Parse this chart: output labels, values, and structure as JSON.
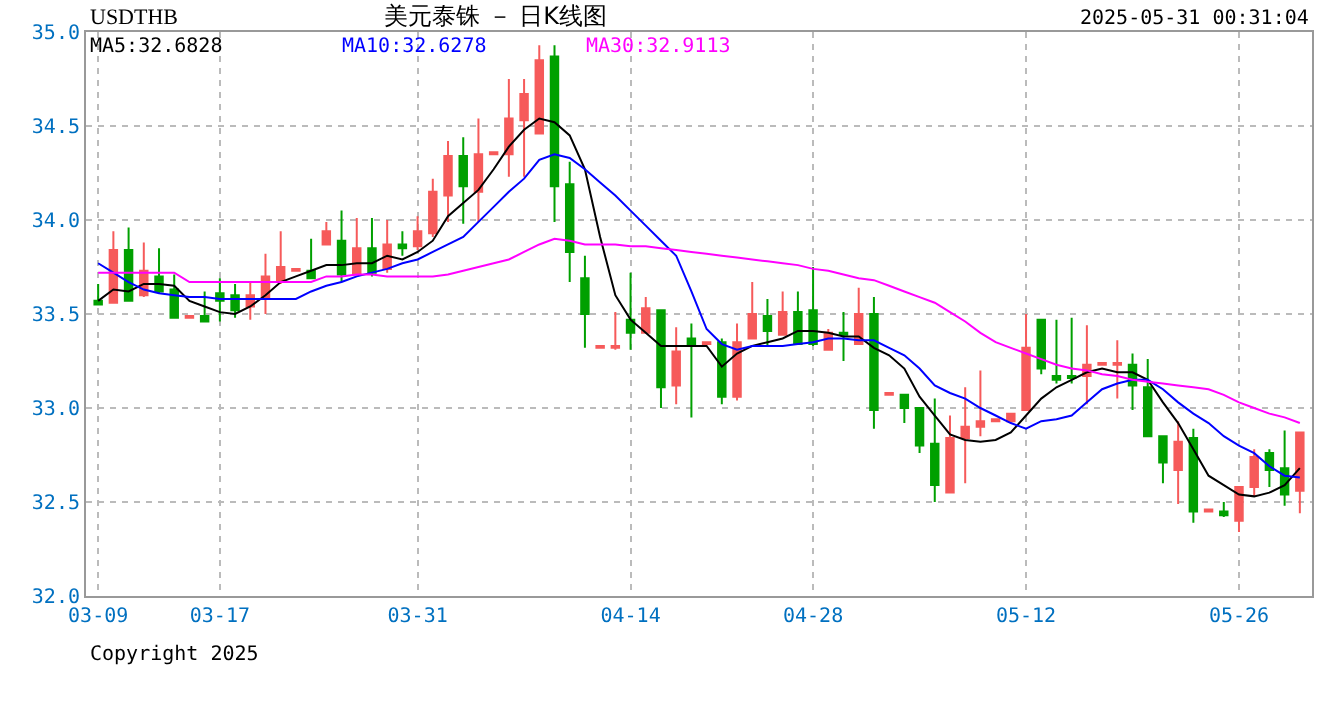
{
  "chart_data": {
    "type": "candlestick",
    "title": "美元泰铢 － 日K线图",
    "subtitle": "USDTHB",
    "annotations": [
      "2025-05-31 00:31:04",
      "Copyright 2025"
    ],
    "categories": [
      "03-09",
      null,
      null,
      null,
      null,
      null,
      null,
      null,
      "03-17",
      null,
      null,
      null,
      null,
      null,
      null,
      null,
      null,
      null,
      null,
      null,
      null,
      "03-31",
      null,
      null,
      null,
      null,
      null,
      null,
      null,
      null,
      null,
      null,
      null,
      null,
      null,
      "04-14",
      null,
      null,
      null,
      null,
      null,
      null,
      null,
      null,
      null,
      null,
      null,
      "04-28",
      null,
      null,
      null,
      null,
      null,
      null,
      null,
      null,
      null,
      null,
      null,
      null,
      null,
      "05-12",
      null,
      null,
      null,
      null,
      null,
      null,
      null,
      null,
      null,
      null,
      null,
      null,
      null,
      "05-26",
      null,
      null,
      null,
      null
    ],
    "ohlc": [
      [
        33.57,
        33.66,
        33.55,
        33.55
      ],
      [
        33.56,
        33.94,
        33.56,
        33.84
      ],
      [
        33.84,
        33.96,
        33.57,
        33.57
      ],
      [
        33.6,
        33.88,
        33.59,
        33.73
      ],
      [
        33.7,
        33.85,
        33.61,
        33.62
      ],
      [
        33.63,
        33.71,
        33.48,
        33.48
      ],
      [
        33.48,
        33.49,
        33.48,
        33.49
      ],
      [
        33.49,
        33.62,
        33.46,
        33.46
      ],
      [
        33.61,
        33.69,
        33.46,
        33.57
      ],
      [
        33.6,
        33.66,
        33.48,
        33.52
      ],
      [
        33.54,
        33.67,
        33.47,
        33.6
      ],
      [
        33.59,
        33.82,
        33.5,
        33.7
      ],
      [
        33.67,
        33.94,
        33.66,
        33.75
      ],
      [
        33.73,
        33.74,
        33.73,
        33.74
      ],
      [
        33.73,
        33.9,
        33.69,
        33.69
      ],
      [
        33.87,
        33.99,
        33.87,
        33.94
      ],
      [
        33.89,
        34.05,
        33.67,
        33.71
      ],
      [
        33.71,
        34.01,
        33.71,
        33.85
      ],
      [
        33.85,
        34.01,
        33.7,
        33.72
      ],
      [
        33.74,
        34.0,
        33.72,
        33.87
      ],
      [
        33.87,
        33.94,
        33.81,
        33.85
      ],
      [
        33.86,
        34.02,
        33.84,
        33.94
      ],
      [
        33.93,
        34.22,
        33.91,
        34.15
      ],
      [
        34.13,
        34.42,
        33.99,
        34.34
      ],
      [
        34.34,
        34.44,
        33.98,
        34.18
      ],
      [
        34.15,
        34.54,
        33.99,
        34.35
      ],
      [
        34.35,
        34.36,
        34.35,
        34.36
      ],
      [
        34.35,
        34.75,
        34.23,
        34.54
      ],
      [
        34.53,
        34.75,
        34.23,
        34.67
      ],
      [
        34.46,
        34.93,
        34.46,
        34.85
      ],
      [
        34.87,
        34.93,
        33.99,
        34.18
      ],
      [
        34.19,
        34.31,
        33.67,
        33.83
      ],
      [
        33.69,
        33.81,
        33.32,
        33.5
      ],
      [
        33.32,
        33.33,
        33.32,
        33.33
      ],
      [
        33.32,
        33.51,
        33.31,
        33.33
      ],
      [
        33.47,
        33.72,
        33.31,
        33.4
      ],
      [
        33.4,
        33.59,
        33.4,
        33.53
      ],
      [
        33.52,
        33.52,
        33.0,
        33.11
      ],
      [
        33.12,
        33.43,
        33.02,
        33.3
      ],
      [
        33.37,
        33.45,
        32.95,
        33.34
      ],
      [
        33.34,
        33.35,
        33.34,
        33.35
      ],
      [
        33.35,
        33.37,
        33.02,
        33.06
      ],
      [
        33.06,
        33.45,
        33.04,
        33.35
      ],
      [
        33.37,
        33.67,
        33.37,
        33.5
      ],
      [
        33.49,
        33.58,
        33.33,
        33.41
      ],
      [
        33.39,
        33.62,
        33.39,
        33.51
      ],
      [
        33.51,
        33.62,
        33.34,
        33.34
      ],
      [
        33.52,
        33.75,
        33.33,
        33.34
      ],
      [
        33.31,
        33.42,
        33.31,
        33.4
      ],
      [
        33.4,
        33.51,
        33.25,
        33.39
      ],
      [
        33.34,
        33.64,
        33.34,
        33.5
      ],
      [
        33.5,
        33.59,
        32.89,
        32.99
      ],
      [
        33.07,
        33.08,
        33.07,
        33.08
      ],
      [
        33.07,
        33.07,
        32.92,
        33.0
      ],
      [
        33.0,
        33.0,
        32.76,
        32.8
      ],
      [
        32.81,
        33.05,
        32.5,
        32.59
      ],
      [
        32.55,
        32.96,
        32.55,
        32.84
      ],
      [
        32.84,
        33.11,
        32.6,
        32.9
      ],
      [
        32.9,
        33.2,
        32.85,
        32.93
      ],
      [
        32.93,
        32.94,
        32.93,
        32.94
      ],
      [
        32.93,
        32.97,
        32.93,
        32.97
      ],
      [
        32.99,
        33.5,
        32.99,
        33.32
      ],
      [
        33.47,
        33.47,
        33.18,
        33.21
      ],
      [
        33.17,
        33.47,
        33.13,
        33.15
      ],
      [
        33.17,
        33.48,
        33.13,
        33.16
      ],
      [
        33.17,
        33.44,
        33.02,
        33.23
      ],
      [
        33.23,
        33.24,
        33.23,
        33.24
      ],
      [
        33.23,
        33.36,
        33.05,
        33.24
      ],
      [
        33.23,
        33.29,
        32.99,
        33.12
      ],
      [
        33.11,
        33.26,
        32.85,
        32.85
      ],
      [
        32.85,
        32.85,
        32.6,
        32.71
      ],
      [
        32.67,
        32.93,
        32.49,
        32.82
      ],
      [
        32.84,
        32.89,
        32.39,
        32.45
      ],
      [
        32.45,
        32.46,
        32.45,
        32.46
      ],
      [
        32.45,
        32.5,
        32.42,
        32.43
      ],
      [
        32.4,
        32.58,
        32.34,
        32.58
      ],
      [
        32.58,
        32.78,
        32.53,
        32.74
      ],
      [
        32.76,
        32.78,
        32.58,
        32.67
      ],
      [
        32.68,
        32.88,
        32.48,
        32.54
      ],
      [
        32.56,
        32.87,
        32.44,
        32.87
      ]
    ],
    "series": [
      {
        "type": "line",
        "name": "MA5:32.6828",
        "color": "#000000",
        "values": [
          33.57,
          33.63,
          33.62,
          33.66,
          33.66,
          33.65,
          33.57,
          33.54,
          33.51,
          33.5,
          33.54,
          33.6,
          33.67,
          33.7,
          33.73,
          33.76,
          33.76,
          33.77,
          33.77,
          33.81,
          33.79,
          33.83,
          33.89,
          34.02,
          34.09,
          34.16,
          34.27,
          34.39,
          34.48,
          34.54,
          34.52,
          34.45,
          34.27,
          33.91,
          33.6,
          33.47,
          33.4,
          33.33,
          33.33,
          33.33,
          33.33,
          33.22,
          33.29,
          33.33,
          33.35,
          33.37,
          33.41,
          33.41,
          33.4,
          33.38,
          33.38,
          33.32,
          33.28,
          33.21,
          33.06,
          32.96,
          32.86,
          32.83,
          32.82,
          32.83,
          32.87,
          32.96,
          33.05,
          33.11,
          33.15,
          33.19,
          33.21,
          33.19,
          33.19,
          33.15,
          33.03,
          32.92,
          32.78,
          32.64,
          32.59,
          32.54,
          32.53,
          32.55,
          32.59,
          32.68
        ]
      },
      {
        "type": "line",
        "name": "MA10:32.6278",
        "color": "#0000ff",
        "values": [
          33.77,
          33.72,
          33.67,
          33.63,
          33.61,
          33.6,
          33.59,
          33.59,
          33.58,
          33.58,
          33.58,
          33.58,
          33.58,
          33.58,
          33.62,
          33.65,
          33.67,
          33.7,
          33.72,
          33.74,
          33.77,
          33.79,
          33.83,
          33.87,
          33.91,
          33.99,
          34.07,
          34.15,
          34.22,
          34.32,
          34.35,
          34.33,
          34.27,
          34.2,
          34.13,
          34.05,
          33.97,
          33.89,
          33.81,
          33.62,
          33.42,
          33.34,
          33.31,
          33.33,
          33.33,
          33.33,
          33.34,
          33.35,
          33.37,
          33.37,
          33.36,
          33.36,
          33.32,
          33.28,
          33.21,
          33.12,
          33.08,
          33.05,
          33.0,
          32.96,
          32.92,
          32.89,
          32.93,
          32.94,
          32.96,
          33.03,
          33.1,
          33.13,
          33.15,
          33.15,
          33.1,
          33.03,
          32.97,
          32.92,
          32.85,
          32.8,
          32.76,
          32.69,
          32.64,
          32.63
        ]
      },
      {
        "type": "line",
        "name": "MA30:32.9113",
        "color": "#ff00ff",
        "values": [
          33.72,
          33.72,
          33.72,
          33.72,
          33.72,
          33.72,
          33.67,
          33.67,
          33.67,
          33.67,
          33.67,
          33.67,
          33.67,
          33.67,
          33.67,
          33.7,
          33.7,
          33.71,
          33.71,
          33.7,
          33.7,
          33.7,
          33.7,
          33.71,
          33.73,
          33.75,
          33.77,
          33.79,
          33.83,
          33.87,
          33.9,
          33.89,
          33.87,
          33.87,
          33.87,
          33.86,
          33.86,
          33.85,
          33.84,
          33.83,
          33.82,
          33.81,
          33.8,
          33.79,
          33.78,
          33.77,
          33.76,
          33.74,
          33.73,
          33.71,
          33.69,
          33.68,
          33.65,
          33.62,
          33.59,
          33.56,
          33.51,
          33.46,
          33.4,
          33.35,
          33.32,
          33.29,
          33.26,
          33.23,
          33.21,
          33.2,
          33.18,
          33.17,
          33.15,
          33.14,
          33.13,
          33.12,
          33.11,
          33.1,
          33.07,
          33.03,
          33.0,
          32.97,
          32.95,
          32.92
        ]
      }
    ],
    "ylim": [
      32.0,
      35.0
    ],
    "yticks": [
      {
        "value": 32.0,
        "label": "32.0"
      },
      {
        "value": 32.5,
        "label": "32.5"
      },
      {
        "value": 33.0,
        "label": "33.0"
      },
      {
        "value": 33.5,
        "label": "33.5"
      },
      {
        "value": 34.0,
        "label": "34.0"
      },
      {
        "value": 34.5,
        "label": "34.5"
      },
      {
        "value": 35.0,
        "label": "35.0"
      }
    ],
    "grid": true
  }
}
